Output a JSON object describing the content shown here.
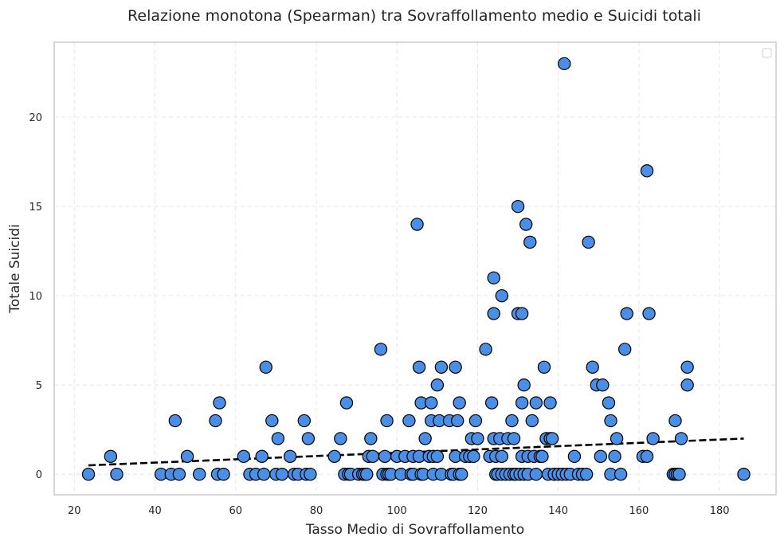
{
  "chart_data": {
    "type": "scatter",
    "title": "Relazione monotona (Spearman) tra Sovraffollamento medio e Suicidi totali",
    "xlabel": "Tasso Medio di Sovraffollamento",
    "ylabel": "Totale Suicidi",
    "xlim": [
      15,
      194
    ],
    "ylim": [
      -1.15,
      24.2
    ],
    "xticks": [
      20,
      40,
      60,
      80,
      100,
      120,
      140,
      160,
      180
    ],
    "yticks": [
      0,
      5,
      10,
      15,
      20
    ],
    "grid": true,
    "legend": "top-right",
    "colors": {
      "points": "#4a8ee6",
      "edge": "#000000",
      "trend": "#000000"
    },
    "trend_line": {
      "x": [
        23.5,
        186
      ],
      "y": [
        0.5,
        2.0
      ]
    },
    "points": [
      [
        23.5,
        0
      ],
      [
        29,
        1
      ],
      [
        30.5,
        0
      ],
      [
        41.5,
        0
      ],
      [
        44,
        0
      ],
      [
        45,
        3
      ],
      [
        46,
        0
      ],
      [
        48,
        1
      ],
      [
        51,
        0
      ],
      [
        55,
        3
      ],
      [
        55.5,
        0
      ],
      [
        56,
        4
      ],
      [
        57,
        0
      ],
      [
        62,
        1
      ],
      [
        63.5,
        0
      ],
      [
        65,
        0
      ],
      [
        66.5,
        1
      ],
      [
        67,
        0
      ],
      [
        67.5,
        6
      ],
      [
        69,
        3
      ],
      [
        70,
        0
      ],
      [
        70.5,
        2
      ],
      [
        71.5,
        0
      ],
      [
        73.5,
        1
      ],
      [
        74.5,
        0
      ],
      [
        75.5,
        0
      ],
      [
        77,
        3
      ],
      [
        77.5,
        0
      ],
      [
        78,
        2
      ],
      [
        78.5,
        0
      ],
      [
        84.5,
        1
      ],
      [
        86,
        2
      ],
      [
        87,
        0
      ],
      [
        87.5,
        4
      ],
      [
        88,
        0
      ],
      [
        88.5,
        0
      ],
      [
        90.5,
        0
      ],
      [
        91.5,
        0
      ],
      [
        92,
        0
      ],
      [
        92.5,
        0
      ],
      [
        93,
        1
      ],
      [
        93.5,
        2
      ],
      [
        94,
        1
      ],
      [
        96,
        7
      ],
      [
        96.5,
        0
      ],
      [
        97,
        1
      ],
      [
        97.5,
        0
      ],
      [
        97.5,
        3
      ],
      [
        98,
        0
      ],
      [
        98.5,
        0
      ],
      [
        100,
        1
      ],
      [
        101,
        0
      ],
      [
        102,
        1
      ],
      [
        103,
        3
      ],
      [
        103.5,
        0
      ],
      [
        104,
        1
      ],
      [
        104,
        0
      ],
      [
        105,
        14
      ],
      [
        105.5,
        6
      ],
      [
        105.5,
        1
      ],
      [
        106,
        4
      ],
      [
        106,
        0
      ],
      [
        106.5,
        0
      ],
      [
        107,
        2
      ],
      [
        108,
        1
      ],
      [
        108.5,
        3
      ],
      [
        108.5,
        4
      ],
      [
        109,
        1
      ],
      [
        109,
        0
      ],
      [
        110,
        5
      ],
      [
        110,
        1
      ],
      [
        110.5,
        3
      ],
      [
        111,
        6
      ],
      [
        111,
        0
      ],
      [
        113,
        3
      ],
      [
        113.5,
        0
      ],
      [
        114,
        0
      ],
      [
        114.5,
        6
      ],
      [
        114.5,
        1
      ],
      [
        115,
        3
      ],
      [
        115.5,
        4
      ],
      [
        115.5,
        0
      ],
      [
        116,
        0
      ],
      [
        117,
        1
      ],
      [
        118,
        1
      ],
      [
        118.5,
        2
      ],
      [
        119,
        1
      ],
      [
        119.5,
        3
      ],
      [
        120,
        2
      ],
      [
        122,
        7
      ],
      [
        123,
        1
      ],
      [
        123.5,
        4
      ],
      [
        124,
        11
      ],
      [
        124,
        9
      ],
      [
        124,
        2
      ],
      [
        124.5,
        1
      ],
      [
        124.5,
        0
      ],
      [
        125,
        0
      ],
      [
        125.5,
        2
      ],
      [
        126,
        10
      ],
      [
        126,
        1
      ],
      [
        126,
        0
      ],
      [
        127,
        0
      ],
      [
        127.5,
        2
      ],
      [
        128,
        0
      ],
      [
        128.5,
        3
      ],
      [
        129,
        2
      ],
      [
        129,
        0
      ],
      [
        129.5,
        0
      ],
      [
        130,
        15
      ],
      [
        130,
        9
      ],
      [
        130.5,
        0
      ],
      [
        131,
        9
      ],
      [
        131,
        4
      ],
      [
        131,
        1
      ],
      [
        131.5,
        5
      ],
      [
        131.5,
        0
      ],
      [
        132,
        14
      ],
      [
        132.5,
        1
      ],
      [
        132.5,
        0
      ],
      [
        133,
        13
      ],
      [
        133.5,
        3
      ],
      [
        134,
        1
      ],
      [
        134.5,
        4
      ],
      [
        134.5,
        0
      ],
      [
        135.5,
        1
      ],
      [
        136,
        1
      ],
      [
        136.5,
        6
      ],
      [
        137,
        2
      ],
      [
        137.5,
        0
      ],
      [
        138,
        4
      ],
      [
        138,
        2
      ],
      [
        138.5,
        2
      ],
      [
        139,
        0
      ],
      [
        139,
        0
      ],
      [
        140,
        0
      ],
      [
        141,
        0
      ],
      [
        141.5,
        23
      ],
      [
        142,
        0
      ],
      [
        143,
        0
      ],
      [
        144,
        1
      ],
      [
        145,
        0
      ],
      [
        146,
        0
      ],
      [
        147,
        0
      ],
      [
        147.5,
        13
      ],
      [
        148.5,
        6
      ],
      [
        149.5,
        5
      ],
      [
        150.5,
        1
      ],
      [
        151,
        5
      ],
      [
        152.5,
        4
      ],
      [
        153,
        3
      ],
      [
        153,
        0
      ],
      [
        154,
        1
      ],
      [
        154.5,
        2
      ],
      [
        155.5,
        0
      ],
      [
        156.5,
        7
      ],
      [
        157,
        9
      ],
      [
        161,
        1
      ],
      [
        162,
        1
      ],
      [
        162,
        17
      ],
      [
        162.5,
        9
      ],
      [
        163.5,
        2
      ],
      [
        168.5,
        0
      ],
      [
        169,
        3
      ],
      [
        169,
        0
      ],
      [
        169.5,
        0
      ],
      [
        170,
        0
      ],
      [
        170.5,
        2
      ],
      [
        172,
        6
      ],
      [
        172,
        5
      ],
      [
        186,
        0
      ]
    ]
  }
}
